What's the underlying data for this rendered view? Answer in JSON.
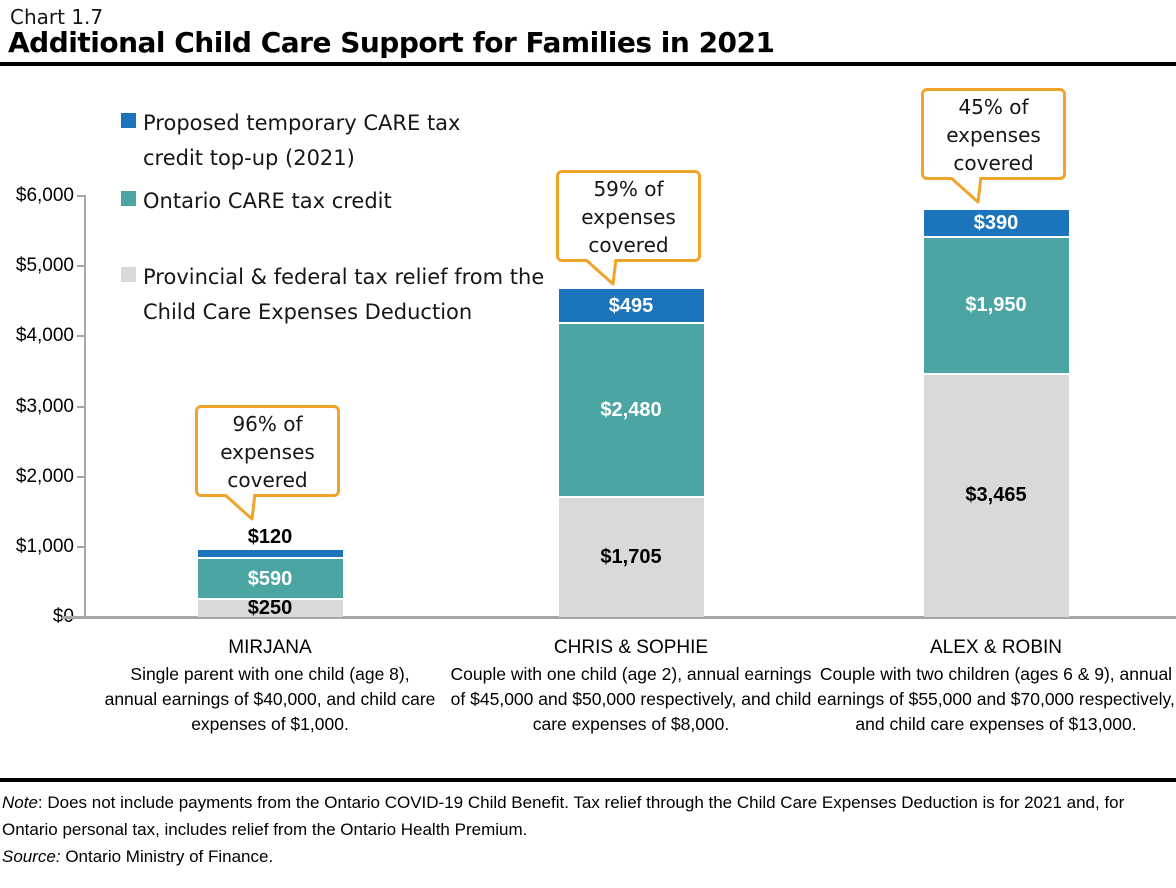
{
  "header": {
    "chart_number": "Chart 1.7",
    "title": "Additional Child Care Support for Families in 2021"
  },
  "legend": {
    "items": [
      {
        "label": "Proposed temporary CARE tax credit top-up (2021)",
        "color": "#1b74bc"
      },
      {
        "label": "Ontario CARE tax credit",
        "color": "#4ba5a2"
      },
      {
        "label": "Provincial & federal tax relief from the Child Care Expenses Deduction",
        "color": "#d9d9d9"
      }
    ]
  },
  "chart_data": {
    "type": "bar",
    "subtype": "stacked",
    "title": "Additional Child Care Support for Families in 2021",
    "grid": false,
    "legend_position": "top-left",
    "categories": [
      "MIRJANA",
      "CHRIS & SOPHIE",
      "ALEX & ROBIN"
    ],
    "category_descriptions": [
      "Single parent with one child (age 8), annual earnings of $40,000, and child care expenses of $1,000.",
      "Couple with one child (age 2), annual earnings of $45,000 and $50,000 respectively, and child care expenses of $8,000.",
      "Couple with two children (ages 6 & 9), annual earnings of $55,000 and $70,000 respectively, and child care expenses of $13,000."
    ],
    "series": [
      {
        "name": "Provincial & federal tax relief from the Child Care Expenses Deduction",
        "color": "#d9d9d9",
        "label_color": "#000000",
        "values": [
          250,
          1705,
          3465
        ],
        "labels": [
          "$250",
          "$1,705",
          "$3,465"
        ]
      },
      {
        "name": "Ontario CARE tax credit",
        "color": "#4ba5a2",
        "label_color": "#ffffff",
        "values": [
          590,
          2480,
          1950
        ],
        "labels": [
          "$590",
          "$2,480",
          "$1,950"
        ]
      },
      {
        "name": "Proposed temporary CARE tax credit top-up (2021)",
        "color": "#1b74bc",
        "label_color": "#ffffff",
        "values": [
          120,
          495,
          390
        ],
        "labels": [
          "$120",
          "$495",
          "$390"
        ]
      }
    ],
    "totals": [
      960,
      4680,
      5805
    ],
    "callouts": [
      "96% of expenses covered",
      "59% of expenses covered",
      "45% of expenses covered"
    ],
    "y_axis": {
      "min": 0,
      "max": 6000,
      "tick_interval": 1000,
      "tick_labels": [
        "$0",
        "$1,000",
        "$2,000",
        "$3,000",
        "$4,000",
        "$5,000",
        "$6,000"
      ]
    }
  },
  "footer": {
    "note_label": "Note",
    "note_text": ": Does not include payments from the Ontario COVID-19 Child Benefit. Tax relief through the Child Care Expenses Deduction is for 2021 and, for Ontario personal tax, includes relief from the Ontario Health Premium.",
    "source_label": "Source:",
    "source_text": " Ontario Ministry of Finance."
  },
  "colors": {
    "accent_blue": "#1b74bc",
    "teal": "#4ba5a2",
    "gray": "#d9d9d9",
    "callout_border": "#f0a42a",
    "axis": "#a6a6a6"
  }
}
